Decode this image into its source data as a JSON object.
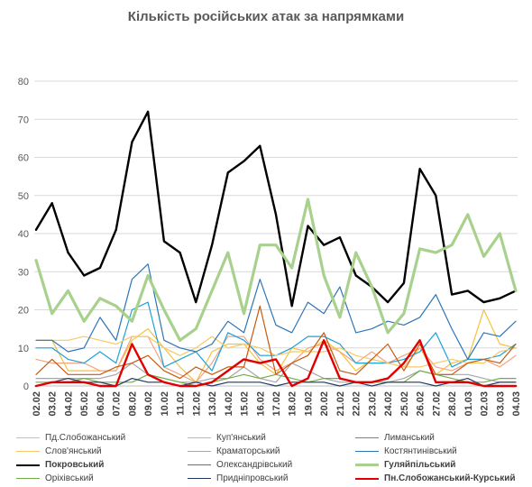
{
  "chart_data": {
    "type": "line",
    "title": "Кількість російських атак за напрямками",
    "xlabel": "",
    "ylabel": "",
    "ylim": [
      0,
      80
    ],
    "y_ticks": [
      0,
      10,
      20,
      30,
      40,
      50,
      60,
      70,
      80
    ],
    "grid": true,
    "legend_position": "bottom",
    "categories": [
      "02.02",
      "03.02",
      "04.02",
      "05.02",
      "06.02",
      "07.02",
      "08.02",
      "09.02",
      "10.02",
      "11.02",
      "12.02",
      "13.02",
      "14.02",
      "15.02",
      "16.02",
      "17.02",
      "18.02",
      "19.02",
      "20.02",
      "21.02",
      "22.02",
      "23.02",
      "24.02",
      "25.02",
      "26.02",
      "27.02",
      "28.02",
      "01.03",
      "02.03",
      "03.03",
      "04.03"
    ],
    "tick_labels": [
      "02.02",
      "03.02",
      "04.02",
      "05.02",
      "06.02",
      "07.02",
      "08.02",
      "09.02",
      "10.02",
      "11.02",
      "12.02",
      "13.02",
      "14.02",
      "15.02",
      "16.02",
      "17.02",
      "18.02",
      "19.02",
      "20.02",
      "21.02",
      "22.02",
      "23.02",
      "24.02",
      "25.02",
      "26.02",
      "27.02",
      "28.02",
      "01.03",
      "02.03",
      "03.03",
      "04.03"
    ],
    "series": [
      {
        "name": "Пд.Слобожанський",
        "color": "#f6c23a",
        "width": 1.2,
        "values": [
          12,
          12,
          4,
          4,
          4,
          4,
          12,
          15,
          10,
          5,
          1,
          9,
          11,
          11,
          6,
          3,
          10,
          9,
          12,
          9,
          4,
          7,
          6,
          5,
          10,
          3,
          6,
          7,
          20,
          11,
          10
        ]
      },
      {
        "name": "Куп'янський",
        "color": "#f4a582",
        "width": 1.2,
        "values": [
          7,
          6,
          6,
          6,
          4,
          4,
          13,
          13,
          5,
          3,
          1,
          6,
          13,
          13,
          7,
          4,
          6,
          10,
          11,
          9,
          6,
          9,
          6,
          8,
          10,
          5,
          4,
          6,
          7,
          5,
          8
        ]
      },
      {
        "name": "Лиманський",
        "color": "#1ea0d8",
        "width": 1.2,
        "values": [
          10,
          10,
          7,
          6,
          9,
          6,
          20,
          22,
          5,
          7,
          9,
          4,
          14,
          12,
          8,
          8,
          10,
          13,
          13,
          11,
          6,
          6,
          6,
          7,
          9,
          14,
          5,
          7,
          7,
          8,
          11
        ]
      },
      {
        "name": "Слов'янський",
        "color": "#f5c966",
        "width": 1.2,
        "values": [
          12,
          12,
          12,
          13,
          12,
          11,
          13,
          13,
          10,
          8,
          10,
          13,
          10,
          11,
          10,
          8,
          9,
          9,
          9,
          10,
          8,
          7,
          6,
          5,
          5,
          6,
          7,
          6,
          6,
          9,
          10
        ]
      },
      {
        "name": "Краматорський",
        "color": "#a6a6a6",
        "width": 1.2,
        "values": [
          2,
          2,
          2,
          2,
          2,
          3,
          6,
          3,
          2,
          1,
          1,
          2,
          2,
          5,
          2,
          1,
          6,
          4,
          2,
          1,
          1,
          1,
          1,
          2,
          4,
          3,
          3,
          3,
          2,
          1,
          1
        ]
      },
      {
        "name": "Костянтинівський",
        "color": "#2e75b6",
        "width": 1.2,
        "values": [
          12,
          12,
          9,
          10,
          18,
          12,
          28,
          32,
          12,
          10,
          9,
          11,
          17,
          14,
          28,
          16,
          14,
          22,
          19,
          26,
          14,
          15,
          17,
          16,
          18,
          24,
          15,
          7,
          14,
          13,
          17
        ]
      },
      {
        "name": "Покровський",
        "color": "#000000",
        "width": 2.4,
        "values": [
          41,
          48,
          35,
          29,
          31,
          41,
          64,
          72,
          38,
          35,
          22,
          37,
          56,
          59,
          63,
          45,
          21,
          42,
          37,
          39,
          29,
          26,
          22,
          27,
          57,
          50,
          24,
          25,
          22,
          23,
          25
        ]
      },
      {
        "name": "Олександрівський",
        "color": "#c55a11",
        "width": 1.2,
        "values": [
          3,
          7,
          3,
          3,
          3,
          5,
          6,
          8,
          4,
          2,
          5,
          3,
          5,
          5,
          21,
          3,
          6,
          8,
          14,
          4,
          3,
          7,
          11,
          4,
          11,
          3,
          3,
          6,
          7,
          6,
          11
        ]
      },
      {
        "name": "Гуляйпільський",
        "color": "#a9d18e",
        "width": 3.2,
        "values": [
          33,
          19,
          25,
          17,
          23,
          21,
          17,
          29,
          20,
          12,
          15,
          25,
          35,
          19,
          37,
          37,
          31,
          49,
          29,
          18,
          35,
          26,
          14,
          19,
          36,
          35,
          37,
          45,
          34,
          40,
          25
        ]
      },
      {
        "name": "Оріхівський",
        "color": "#70ad47",
        "width": 1.2,
        "values": [
          1,
          1,
          1,
          2,
          1,
          1,
          1,
          3,
          2,
          1,
          0,
          1,
          2,
          3,
          2,
          3,
          2,
          1,
          2,
          2,
          1,
          1,
          1,
          1,
          4,
          3,
          2,
          1,
          1,
          2,
          2
        ]
      },
      {
        "name": "Придніпровський",
        "color": "#1f3864",
        "width": 1.2,
        "values": [
          0,
          1,
          2,
          1,
          1,
          0,
          2,
          1,
          1,
          0,
          1,
          0,
          1,
          1,
          1,
          0,
          1,
          1,
          1,
          0,
          1,
          0,
          1,
          1,
          1,
          0,
          1,
          2,
          0,
          1,
          1
        ]
      },
      {
        "name": "Пн.Слобожанський-Курський",
        "color": "#e00000",
        "width": 2.4,
        "values": [
          0,
          1,
          1,
          1,
          0,
          0,
          11,
          3,
          1,
          0,
          0,
          1,
          4,
          7,
          6,
          7,
          0,
          2,
          12,
          2,
          1,
          1,
          2,
          6,
          12,
          1,
          1,
          1,
          0,
          0,
          0
        ]
      }
    ]
  }
}
